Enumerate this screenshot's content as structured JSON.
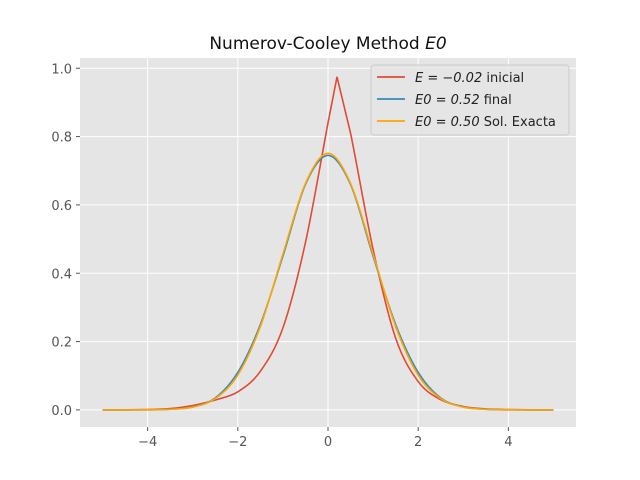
{
  "chart_data": {
    "type": "line",
    "title": "Numerov-Cooley Method E0",
    "title_parts": {
      "text": "Numerov-Cooley Method ",
      "math": "E0"
    },
    "xlabel": "",
    "ylabel": "",
    "xlim": [
      -5.5,
      5.5
    ],
    "ylim": [
      -0.05,
      1.03
    ],
    "xticks": [
      -4,
      -2,
      0,
      2,
      4
    ],
    "xtick_labels": [
      "−4",
      "−2",
      "0",
      "2",
      "4"
    ],
    "yticks": [
      0.0,
      0.2,
      0.4,
      0.6,
      0.8,
      1.0
    ],
    "ytick_labels": [
      "0.0",
      "0.2",
      "0.4",
      "0.6",
      "0.8",
      "1.0"
    ],
    "grid": true,
    "legend_position": "top-right",
    "series": [
      {
        "name": "E = −0.02 inicial",
        "color": "#e24a33",
        "x": [
          -5.0,
          -4.0,
          -3.5,
          -3.0,
          -2.5,
          -2.0,
          -1.5,
          -1.0,
          -0.5,
          0.0,
          0.2,
          0.5,
          1.0,
          1.5,
          2.0,
          2.5,
          3.0,
          3.5,
          4.0,
          5.0
        ],
        "y": [
          0.0,
          0.001,
          0.004,
          0.013,
          0.029,
          0.053,
          0.113,
          0.24,
          0.49,
          0.84,
          0.975,
          0.81,
          0.47,
          0.21,
          0.083,
          0.03,
          0.01,
          0.003,
          0.001,
          0.0
        ]
      },
      {
        "name": "E0 = 0.52 final",
        "color": "#348abd",
        "x": [
          -5.0,
          -4.0,
          -3.5,
          -3.0,
          -2.5,
          -2.0,
          -1.5,
          -1.0,
          -0.5,
          0.0,
          0.5,
          1.0,
          1.5,
          2.0,
          2.5,
          3.0,
          3.5,
          4.0,
          5.0
        ],
        "y": [
          0.0,
          0.0003,
          0.002,
          0.009,
          0.035,
          0.11,
          0.25,
          0.45,
          0.66,
          0.745,
          0.66,
          0.45,
          0.25,
          0.11,
          0.035,
          0.009,
          0.002,
          0.0003,
          0.0
        ]
      },
      {
        "name": "E0 = 0.50 Sol. Exacta",
        "color": "#ffa500",
        "x": [
          -5.0,
          -4.0,
          -3.5,
          -3.0,
          -2.5,
          -2.0,
          -1.5,
          -1.0,
          -0.5,
          0.0,
          0.5,
          1.0,
          1.5,
          2.0,
          2.5,
          3.0,
          3.5,
          4.0,
          5.0
        ],
        "y": [
          0.0,
          0.0003,
          0.0016,
          0.008,
          0.033,
          0.102,
          0.244,
          0.456,
          0.663,
          0.751,
          0.663,
          0.456,
          0.244,
          0.102,
          0.033,
          0.008,
          0.0016,
          0.0003,
          0.0
        ]
      }
    ],
    "legend_entries": [
      {
        "math": "E = −0.02",
        "text": " inicial"
      },
      {
        "math": "E0 = 0.52",
        "text": " final"
      },
      {
        "math": "E0 = 0.50",
        "text": " Sol. Exacta"
      }
    ],
    "colors": {
      "plot_background": "#e5e5e5",
      "grid": "#ffffff",
      "tick_text": "#555555"
    }
  }
}
